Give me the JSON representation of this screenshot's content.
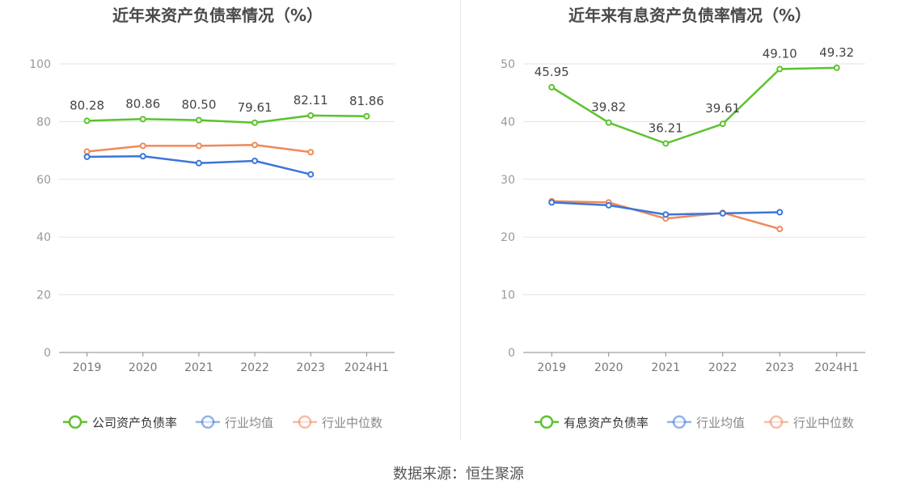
{
  "chart_data": [
    {
      "type": "line",
      "title": "近年来资产负债率情况（%）",
      "categories": [
        "2019",
        "2020",
        "2021",
        "2022",
        "2023",
        "2024H1"
      ],
      "ylim": [
        0,
        100
      ],
      "yticks": [
        0,
        20,
        40,
        60,
        80,
        100
      ],
      "grid": true,
      "legend_position": "bottom",
      "series": [
        {
          "name": "公司资产负债率",
          "color": "#5cc22c",
          "labels": true,
          "values": [
            80.28,
            80.86,
            80.5,
            79.61,
            82.11,
            81.86
          ]
        },
        {
          "name": "行业均值",
          "color": "#3a76d8",
          "labels": false,
          "values": [
            67.8,
            68.0,
            65.6,
            66.4,
            61.7,
            null
          ]
        },
        {
          "name": "行业中位数",
          "color": "#f08859",
          "labels": false,
          "values": [
            69.6,
            71.6,
            71.6,
            71.9,
            69.4,
            null
          ]
        }
      ]
    },
    {
      "type": "line",
      "title": "近年来有息资产负债率情况（%）",
      "categories": [
        "2019",
        "2020",
        "2021",
        "2022",
        "2023",
        "2024H1"
      ],
      "ylim": [
        0,
        50
      ],
      "yticks": [
        0,
        10,
        20,
        30,
        40,
        50
      ],
      "grid": true,
      "legend_position": "bottom",
      "series": [
        {
          "name": "有息资产负债率",
          "color": "#5cc22c",
          "labels": true,
          "values": [
            45.95,
            39.82,
            36.21,
            39.61,
            49.1,
            49.32
          ]
        },
        {
          "name": "行业均值",
          "color": "#3a76d8",
          "labels": false,
          "values": [
            26.0,
            25.5,
            23.9,
            24.1,
            24.3,
            null
          ]
        },
        {
          "name": "行业中位数",
          "color": "#f08859",
          "labels": false,
          "values": [
            26.2,
            26.0,
            23.2,
            24.2,
            21.4,
            null
          ]
        }
      ]
    }
  ],
  "source": "数据来源：恒生聚源"
}
